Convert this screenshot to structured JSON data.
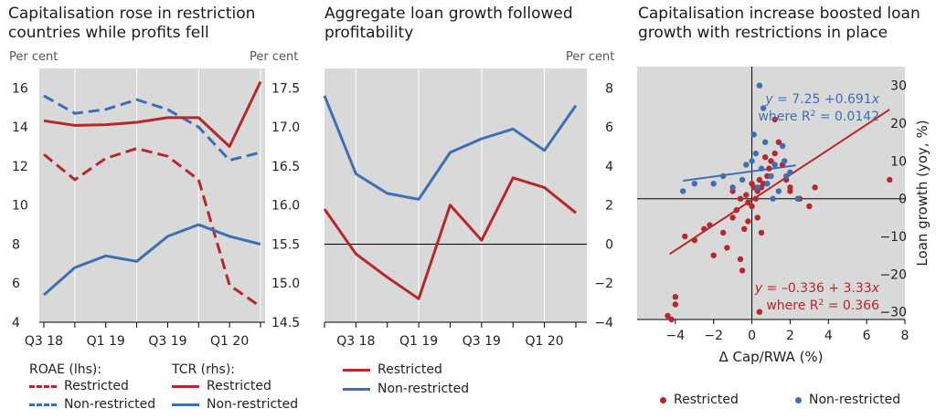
{
  "colors": {
    "restricted": "#b5282b",
    "non_restricted": "#3c6fb4",
    "panel_bg": "#d9d9d9",
    "axis": "#000000"
  },
  "chart_data": [
    {
      "type": "line",
      "title_lines": [
        "Capitalisation  rose in restriction",
        "countries while profits  fell"
      ],
      "unit_left": "Per cent",
      "unit_right": "Per cent",
      "x_ticks": [
        "Q3 18",
        "Q1 19",
        "Q3 19",
        "Q1 20"
      ],
      "x_tick_index": [
        0,
        2,
        4,
        6
      ],
      "n_points": 8,
      "y_left": {
        "min": 4,
        "max": 17,
        "ticks": [
          4,
          6,
          8,
          10,
          12,
          14,
          16
        ]
      },
      "y_right": {
        "min": 14.5,
        "max": 17.75,
        "ticks": [
          14.5,
          15.0,
          15.5,
          16.0,
          16.5,
          17.0,
          17.5
        ]
      },
      "series": [
        {
          "name": "Restricted",
          "group": "ROAE (lhs):",
          "axis": "left",
          "style": "dashed",
          "color_key": "restricted",
          "values": [
            12.6,
            11.3,
            12.4,
            12.9,
            12.5,
            11.3,
            5.9,
            4.8
          ]
        },
        {
          "name": "Non-restricted",
          "group": "ROAE (lhs):",
          "axis": "left",
          "style": "dashed",
          "color_key": "non_restricted",
          "values": [
            15.6,
            14.7,
            14.9,
            15.4,
            14.9,
            14.0,
            12.3,
            12.7
          ]
        },
        {
          "name": "Restricted",
          "group": "TCR (rhs):",
          "axis": "right",
          "style": "solid",
          "color_key": "restricted",
          "values": [
            17.08,
            17.02,
            17.03,
            17.06,
            17.12,
            17.12,
            16.75,
            17.58
          ]
        },
        {
          "name": "Non-restricted",
          "group": "TCR (rhs):",
          "axis": "right",
          "style": "solid",
          "color_key": "non_restricted",
          "values": [
            14.85,
            15.2,
            15.35,
            15.28,
            15.6,
            15.75,
            15.6,
            15.5
          ]
        }
      ],
      "legend": {
        "groups": [
          {
            "heading": "ROAE (lhs):",
            "items": [
              "Restricted",
              "Non-restricted"
            ]
          },
          {
            "heading": "TCR (rhs):",
            "items": [
              "Restricted",
              "Non-restricted"
            ]
          }
        ]
      }
    },
    {
      "type": "line",
      "title_lines": [
        "Aggregate loan growth followed",
        "profitability"
      ],
      "unit_right": "Per cent",
      "x_ticks": [
        "Q3 18",
        "Q1 19",
        "Q3 19",
        "Q1 20"
      ],
      "x_tick_index": [
        1,
        3,
        5,
        7
      ],
      "n_points": 9,
      "y": {
        "min": -4,
        "max": 9,
        "ticks": [
          -4,
          -2,
          0,
          2,
          4,
          6,
          8
        ]
      },
      "series": [
        {
          "name": "Restricted",
          "color_key": "restricted",
          "values": [
            1.8,
            -0.5,
            -1.7,
            -2.8,
            2.0,
            0.2,
            3.4,
            2.9,
            1.6
          ]
        },
        {
          "name": "Non-restricted",
          "color_key": "non_restricted",
          "values": [
            7.6,
            3.6,
            2.6,
            2.3,
            4.7,
            5.4,
            5.9,
            4.8,
            7.1
          ]
        }
      ],
      "legend": {
        "items": [
          "Restricted",
          "Non-restricted"
        ]
      }
    },
    {
      "type": "scatter",
      "title_lines": [
        "Capitalisation increase boosted loan",
        "growth with restrictions in place"
      ],
      "xlabel": "Δ Cap/RWA (%)",
      "ylabel": "Loan growth (yoy, %)",
      "x_range": [
        -6,
        8
      ],
      "y_range": [
        -32,
        35
      ],
      "x_ticks": [
        -4,
        -2,
        0,
        2,
        4,
        6,
        8
      ],
      "y_ticks": [
        -30,
        -20,
        -10,
        0,
        10,
        20,
        30
      ],
      "annotations": {
        "non_restricted": {
          "eq_pre": "y",
          "eq_post": " = 7.25 +0.691",
          "eq_var": "x",
          "r2_pre": "where R",
          "r2_sup": "2",
          "r2_post": " = 0.0142"
        },
        "restricted": {
          "eq_pre": "y",
          "eq_post": " = –0.336 + 3.33",
          "eq_var": "x",
          "r2_pre": "where R",
          "r2_sup": "2",
          "r2_post": " = 0.366"
        }
      },
      "fit_lines": [
        {
          "name": "Restricted",
          "color_key": "restricted",
          "intercept": -0.336,
          "slope": 3.33,
          "x_from": -4.3,
          "x_to": 7.2
        },
        {
          "name": "Non-restricted",
          "color_key": "non_restricted",
          "intercept": 7.25,
          "slope": 0.691,
          "x_from": -3.6,
          "x_to": 2.3
        }
      ],
      "series": [
        {
          "name": "Restricted",
          "color_key": "restricted",
          "points": [
            [
              -4.2,
              -32
            ],
            [
              -4,
              -28
            ],
            [
              -4,
              -26
            ],
            [
              -4.4,
              -31
            ],
            [
              -3.5,
              -10
            ],
            [
              -3,
              -11
            ],
            [
              -2.5,
              -8
            ],
            [
              -2.2,
              -7
            ],
            [
              -2,
              -15
            ],
            [
              -1.5,
              -9
            ],
            [
              -1.3,
              -13
            ],
            [
              -1,
              -5
            ],
            [
              -0.8,
              -3
            ],
            [
              -0.6,
              -16
            ],
            [
              -0.5,
              -19
            ],
            [
              -0.4,
              -8
            ],
            [
              -0.2,
              -6
            ],
            [
              0,
              -2
            ],
            [
              0.2,
              0
            ],
            [
              0.3,
              2
            ],
            [
              0.5,
              3
            ],
            [
              0.6,
              4
            ],
            [
              0.8,
              6
            ],
            [
              0.9,
              8
            ],
            [
              1,
              10
            ],
            [
              1.2,
              12
            ],
            [
              1.4,
              15
            ],
            [
              1.6,
              9
            ],
            [
              1.8,
              5
            ],
            [
              2,
              2
            ],
            [
              2.5,
              0
            ],
            [
              3,
              -2
            ],
            [
              -0.6,
              0
            ],
            [
              -0.3,
              1
            ],
            [
              0,
              4
            ],
            [
              0.4,
              5
            ],
            [
              0.7,
              11
            ],
            [
              -1,
              2
            ],
            [
              1.2,
              21
            ],
            [
              0.4,
              -30
            ],
            [
              7.2,
              5
            ],
            [
              -0.2,
              -1
            ],
            [
              0.1,
              3
            ],
            [
              0.3,
              -5
            ],
            [
              0.5,
              -9
            ],
            [
              2,
              3
            ],
            [
              3.3,
              3
            ]
          ]
        },
        {
          "name": "Non-restricted",
          "color_key": "non_restricted",
          "points": [
            [
              -3.6,
              2
            ],
            [
              -3,
              4
            ],
            [
              -2,
              4
            ],
            [
              -1.5,
              6
            ],
            [
              -1,
              3
            ],
            [
              -0.5,
              5
            ],
            [
              0,
              10
            ],
            [
              0.2,
              12
            ],
            [
              0.4,
              30
            ],
            [
              0.5,
              8
            ],
            [
              0.7,
              15
            ],
            [
              0.8,
              4
            ],
            [
              1,
              6
            ],
            [
              1.2,
              9
            ],
            [
              1.4,
              2
            ],
            [
              1.6,
              14
            ],
            [
              1.8,
              6
            ],
            [
              2,
              7
            ],
            [
              2.4,
              0
            ],
            [
              0.6,
              24
            ],
            [
              0.1,
              17
            ],
            [
              -0.3,
              9
            ],
            [
              0.3,
              3
            ],
            [
              1.1,
              0
            ],
            [
              1.7,
              10
            ]
          ]
        }
      ],
      "legend": {
        "items": [
          "Restricted",
          "Non-restricted"
        ]
      }
    }
  ]
}
